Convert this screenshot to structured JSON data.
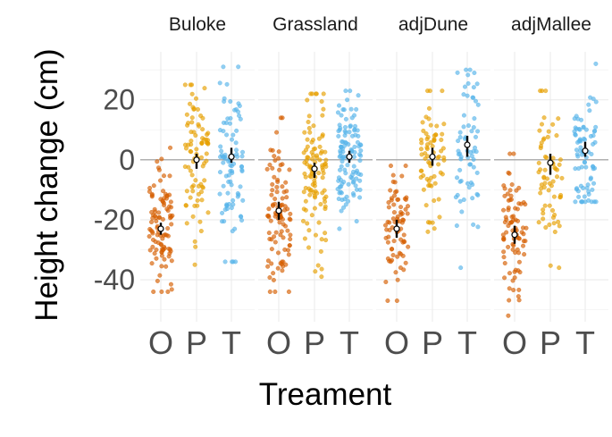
{
  "chart_data": {
    "type": "scatter",
    "subtype": "faceted jittered strip plot with mean and confidence interval",
    "xlabel": "Treament",
    "ylabel": "Height change (cm)",
    "categories": [
      "O",
      "P",
      "T"
    ],
    "facets": [
      "Buloke",
      "Grassland",
      "adjDune",
      "adjMallee"
    ],
    "ylim": [
      -54,
      36
    ],
    "yticks": [
      -40,
      -20,
      0,
      20
    ],
    "hline": 0,
    "grid": true,
    "legend": "none",
    "colors": {
      "O": "#D55E00",
      "P": "#E69F00",
      "T": "#56B4E9"
    },
    "panels": [
      {
        "facet": "Buloke",
        "groups": [
          {
            "treatment": "O",
            "mean": -23,
            "ci": [
              -25,
              -21
            ],
            "n": 100,
            "min": -44,
            "max": 4
          },
          {
            "treatment": "P",
            "mean": 0,
            "ci": [
              -3,
              2
            ],
            "n": 85,
            "min": -35,
            "max": 25
          },
          {
            "treatment": "T",
            "mean": 1,
            "ci": [
              -1,
              4
            ],
            "n": 90,
            "min": -34,
            "max": 31
          }
        ]
      },
      {
        "facet": "Grassland",
        "groups": [
          {
            "treatment": "O",
            "mean": -17,
            "ci": [
              -20,
              -14
            ],
            "n": 100,
            "min": -44,
            "max": 14
          },
          {
            "treatment": "P",
            "mean": -3,
            "ci": [
              -6,
              -1
            ],
            "n": 110,
            "min": -39,
            "max": 22
          },
          {
            "treatment": "T",
            "mean": 1,
            "ci": [
              -1,
              3
            ],
            "n": 115,
            "min": -23,
            "max": 23
          }
        ]
      },
      {
        "facet": "adjDune",
        "groups": [
          {
            "treatment": "O",
            "mean": -23,
            "ci": [
              -26,
              -20
            ],
            "n": 75,
            "min": -47,
            "max": -2
          },
          {
            "treatment": "P",
            "mean": 1,
            "ci": [
              -2,
              4
            ],
            "n": 70,
            "min": -24,
            "max": 23
          },
          {
            "treatment": "T",
            "mean": 5,
            "ci": [
              1,
              8
            ],
            "n": 65,
            "min": -36,
            "max": 30
          }
        ]
      },
      {
        "facet": "adjMallee",
        "groups": [
          {
            "treatment": "O",
            "mean": -25,
            "ci": [
              -28,
              -22
            ],
            "n": 85,
            "min": -52,
            "max": 2
          },
          {
            "treatment": "P",
            "mean": -1,
            "ci": [
              -5,
              2
            ],
            "n": 65,
            "min": -36,
            "max": 23
          },
          {
            "treatment": "T",
            "mean": 3,
            "ci": [
              1,
              6
            ],
            "n": 80,
            "min": -14,
            "max": 32
          }
        ]
      }
    ]
  }
}
